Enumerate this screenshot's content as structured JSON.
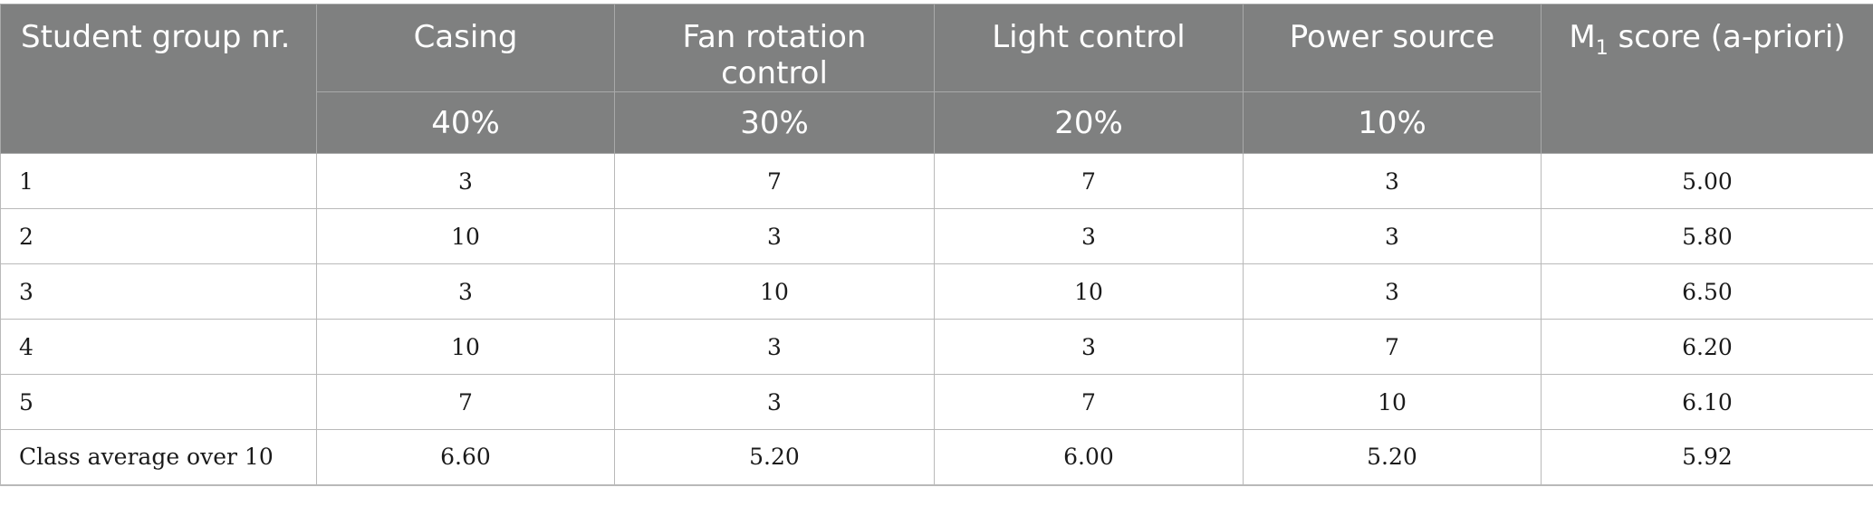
{
  "table": {
    "headers": {
      "group": "Student group nr.",
      "casing": "Casing",
      "fan": "Fan rotation control",
      "light": "Light control",
      "power": "Power source",
      "score_main": "M",
      "score_sub": "1",
      "score_rest": " score (a-priori)"
    },
    "weights": {
      "casing": "40%",
      "fan": "30%",
      "light": "20%",
      "power": "10%"
    },
    "rows": [
      {
        "group": "1",
        "casing": "3",
        "fan": "7",
        "light": "7",
        "power": "3",
        "score": "5.00"
      },
      {
        "group": "2",
        "casing": "10",
        "fan": "3",
        "light": "3",
        "power": "3",
        "score": "5.80"
      },
      {
        "group": "3",
        "casing": "3",
        "fan": "10",
        "light": "10",
        "power": "3",
        "score": "6.50"
      },
      {
        "group": "4",
        "casing": "10",
        "fan": "3",
        "light": "3",
        "power": "7",
        "score": "6.20"
      },
      {
        "group": "5",
        "casing": "7",
        "fan": "3",
        "light": "7",
        "power": "10",
        "score": "6.10"
      },
      {
        "group": "Class average over 10",
        "casing": "6.60",
        "fan": "5.20",
        "light": "6.00",
        "power": "5.20",
        "score": "5.92"
      }
    ]
  }
}
